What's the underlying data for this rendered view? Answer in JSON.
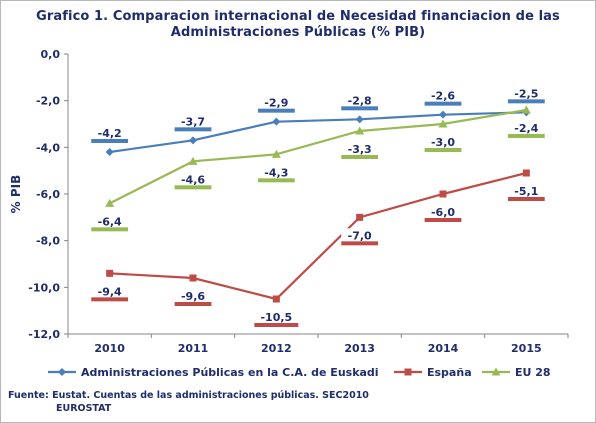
{
  "title_line1": "Grafico 1. Comparacion internacional de  Necesidad financiacion de las",
  "title_line2": "Administraciones Públicas (% PIB)",
  "source_line1": "Fuente: Eustat. Cuentas de las administraciones públicas. SEC2010",
  "source_line2": "EUROSTAT",
  "colors": {
    "euskadi": "#4a7ebb",
    "espana": "#be4b48",
    "eu28": "#98b954",
    "text": "#1f2d6b",
    "axis": "#868686"
  },
  "chart_data": {
    "type": "line",
    "title": "",
    "xlabel": "",
    "ylabel": "% PIB",
    "categories": [
      "2010",
      "2011",
      "2012",
      "2013",
      "2014",
      "2015"
    ],
    "ylim": [
      -12,
      0
    ],
    "yticks": [
      0,
      -2,
      -4,
      -6,
      -8,
      -10,
      -12
    ],
    "ytick_labels": [
      "0,0",
      "-2,0",
      "-4,0",
      "-6,0",
      "-8,0",
      "-10,0",
      "-12,0"
    ],
    "grid": false,
    "legend_position": "bottom",
    "series": [
      {
        "name": "Administraciones Públicas en la C.A. de Euskadi",
        "key": "euskadi",
        "marker": "diamond",
        "values": [
          -4.2,
          -3.7,
          -2.9,
          -2.8,
          -2.6,
          -2.5
        ],
        "labels": [
          "-4,2",
          "-3,7",
          "-2,9",
          "-2,8",
          "-2,6",
          "-2,5"
        ]
      },
      {
        "name": "España",
        "key": "espana",
        "marker": "square",
        "values": [
          -9.4,
          -9.6,
          -10.5,
          -7.0,
          -6.0,
          -5.1
        ],
        "labels": [
          "-9,4",
          "-9,6",
          "-10,5",
          "-7,0",
          "-6,0",
          "-5,1"
        ]
      },
      {
        "name": "EU 28",
        "key": "eu28",
        "marker": "triangle",
        "values": [
          -6.4,
          -4.6,
          -4.3,
          -3.3,
          -3.0,
          -2.4
        ],
        "labels": [
          "-6,4",
          "-4,6",
          "-4,3",
          "-3,3",
          "-3,0",
          "-2,4"
        ]
      }
    ]
  }
}
